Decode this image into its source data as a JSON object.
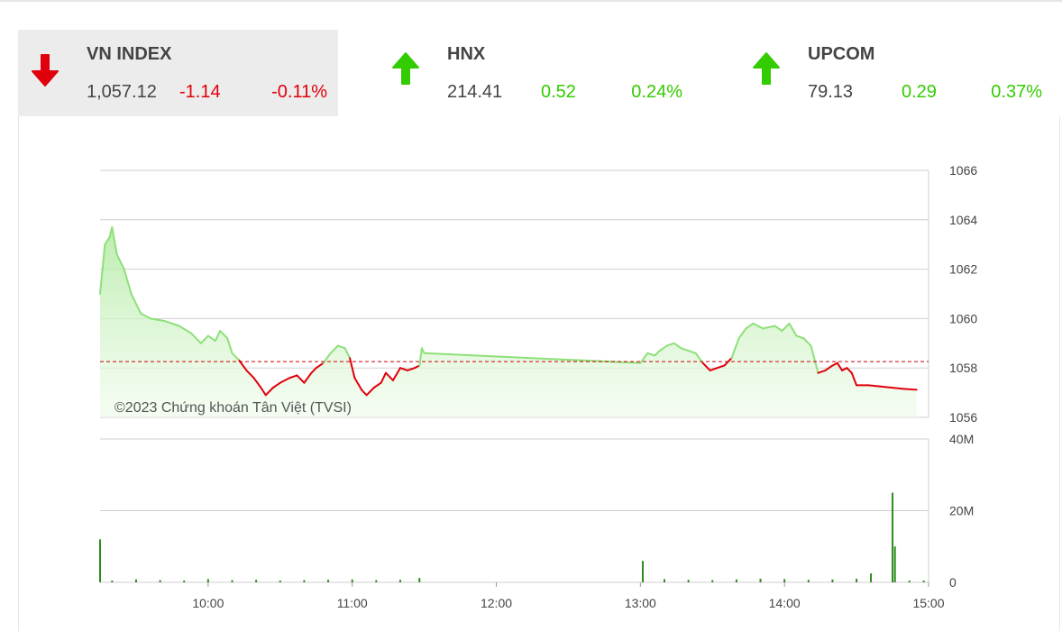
{
  "indices": [
    {
      "name": "VN INDEX",
      "value": "1,057.12",
      "change": "-1.14",
      "percent": "-0.11%",
      "direction": "down",
      "color": "#e0000b"
    },
    {
      "name": "HNX",
      "value": "214.41",
      "change": "0.52",
      "percent": "0.24%",
      "direction": "up",
      "color": "#33cc00"
    },
    {
      "name": "UPCOM",
      "value": "79.13",
      "change": "0.29",
      "percent": "0.37%",
      "direction": "up",
      "color": "#33cc00"
    }
  ],
  "colors": {
    "up_line": "#8ee07a",
    "down_line": "#e0000b",
    "area_fill": "#c6f0bc",
    "reference": "#cc0000",
    "volume": "#2e8b1e",
    "grid": "#cfcfcf"
  },
  "chart_data": {
    "type": "line",
    "copyright": "©2023 Chứng khoán Tân Việt (TVSI)",
    "reference": 1058.26,
    "price_ticks": [
      "1056",
      "1058",
      "1060",
      "1062",
      "1064",
      "1066"
    ],
    "price_range": [
      1056,
      1066
    ],
    "volume_ticks": [
      "0",
      "20M",
      "40M"
    ],
    "volume_range": [
      0,
      40
    ],
    "time_ticks": [
      "10:00",
      "11:00",
      "12:00",
      "13:00",
      "14:00",
      "15:00"
    ],
    "time_range": [
      "09:15",
      "15:00"
    ],
    "price_series": [
      [
        "09:15",
        1061.0
      ],
      [
        "09:17",
        1063.0
      ],
      [
        "09:19",
        1063.3
      ],
      [
        "09:20",
        1063.7
      ],
      [
        "09:22",
        1062.6
      ],
      [
        "09:25",
        1062.0
      ],
      [
        "09:28",
        1061.0
      ],
      [
        "09:32",
        1060.2
      ],
      [
        "09:36",
        1060.0
      ],
      [
        "09:42",
        1059.9
      ],
      [
        "09:48",
        1059.7
      ],
      [
        "09:53",
        1059.4
      ],
      [
        "09:57",
        1059.0
      ],
      [
        "10:00",
        1059.3
      ],
      [
        "10:03",
        1059.1
      ],
      [
        "10:05",
        1059.5
      ],
      [
        "10:08",
        1059.2
      ],
      [
        "10:10",
        1058.6
      ],
      [
        "10:13",
        1058.3
      ],
      [
        "10:16",
        1057.9
      ],
      [
        "10:19",
        1057.6
      ],
      [
        "10:22",
        1057.2
      ],
      [
        "10:24",
        1056.9
      ],
      [
        "10:27",
        1057.2
      ],
      [
        "10:30",
        1057.4
      ],
      [
        "10:34",
        1057.6
      ],
      [
        "10:37",
        1057.7
      ],
      [
        "10:40",
        1057.4
      ],
      [
        "10:43",
        1057.8
      ],
      [
        "10:45",
        1058.0
      ],
      [
        "10:48",
        1058.2
      ],
      [
        "10:51",
        1058.6
      ],
      [
        "10:54",
        1058.9
      ],
      [
        "10:57",
        1058.8
      ],
      [
        "10:59",
        1058.4
      ],
      [
        "11:01",
        1057.6
      ],
      [
        "11:04",
        1057.1
      ],
      [
        "11:06",
        1056.9
      ],
      [
        "11:09",
        1057.2
      ],
      [
        "11:12",
        1057.4
      ],
      [
        "11:14",
        1057.8
      ],
      [
        "11:17",
        1057.5
      ],
      [
        "11:20",
        1058.0
      ],
      [
        "11:23",
        1057.9
      ],
      [
        "11:26",
        1058.0
      ],
      [
        "11:28",
        1058.1
      ],
      [
        "11:29",
        1058.8
      ],
      [
        "11:30",
        1058.6
      ],
      [
        "13:00",
        1058.2
      ],
      [
        "13:03",
        1058.6
      ],
      [
        "13:06",
        1058.5
      ],
      [
        "13:08",
        1058.7
      ],
      [
        "13:11",
        1058.9
      ],
      [
        "13:14",
        1059.0
      ],
      [
        "13:17",
        1058.8
      ],
      [
        "13:20",
        1058.7
      ],
      [
        "13:23",
        1058.6
      ],
      [
        "13:26",
        1058.2
      ],
      [
        "13:29",
        1057.9
      ],
      [
        "13:32",
        1058.0
      ],
      [
        "13:35",
        1058.1
      ],
      [
        "13:38",
        1058.4
      ],
      [
        "13:41",
        1059.2
      ],
      [
        "13:44",
        1059.6
      ],
      [
        "13:47",
        1059.8
      ],
      [
        "13:51",
        1059.6
      ],
      [
        "13:56",
        1059.7
      ],
      [
        "13:59",
        1059.5
      ],
      [
        "14:02",
        1059.8
      ],
      [
        "14:05",
        1059.3
      ],
      [
        "14:08",
        1059.2
      ],
      [
        "14:11",
        1058.9
      ],
      [
        "14:14",
        1057.8
      ],
      [
        "14:17",
        1057.9
      ],
      [
        "14:20",
        1058.1
      ],
      [
        "14:22",
        1058.2
      ],
      [
        "14:24",
        1057.9
      ],
      [
        "14:26",
        1058.0
      ],
      [
        "14:28",
        1057.8
      ],
      [
        "14:30",
        1057.3
      ],
      [
        "14:35",
        1057.3
      ],
      [
        "14:40",
        1057.25
      ],
      [
        "14:45",
        1057.2
      ],
      [
        "14:50",
        1057.15
      ],
      [
        "14:55",
        1057.12
      ]
    ],
    "volume_series": [
      [
        "09:15",
        12
      ],
      [
        "09:20",
        0.5
      ],
      [
        "09:30",
        0.8
      ],
      [
        "09:40",
        0.6
      ],
      [
        "09:50",
        0.5
      ],
      [
        "10:00",
        0.9
      ],
      [
        "10:10",
        0.6
      ],
      [
        "10:20",
        0.7
      ],
      [
        "10:30",
        0.5
      ],
      [
        "10:40",
        0.6
      ],
      [
        "10:50",
        0.7
      ],
      [
        "11:00",
        0.8
      ],
      [
        "11:10",
        0.6
      ],
      [
        "11:20",
        0.7
      ],
      [
        "11:28",
        1.2
      ],
      [
        "13:01",
        6
      ],
      [
        "13:10",
        0.9
      ],
      [
        "13:20",
        0.7
      ],
      [
        "13:30",
        0.6
      ],
      [
        "13:40",
        0.8
      ],
      [
        "13:50",
        1.0
      ],
      [
        "14:00",
        0.9
      ],
      [
        "14:10",
        0.7
      ],
      [
        "14:20",
        0.8
      ],
      [
        "14:30",
        1.0
      ],
      [
        "14:36",
        2.5
      ],
      [
        "14:45",
        25
      ],
      [
        "14:46",
        10
      ],
      [
        "14:52",
        0.5
      ],
      [
        "14:58",
        0.5
      ]
    ]
  }
}
